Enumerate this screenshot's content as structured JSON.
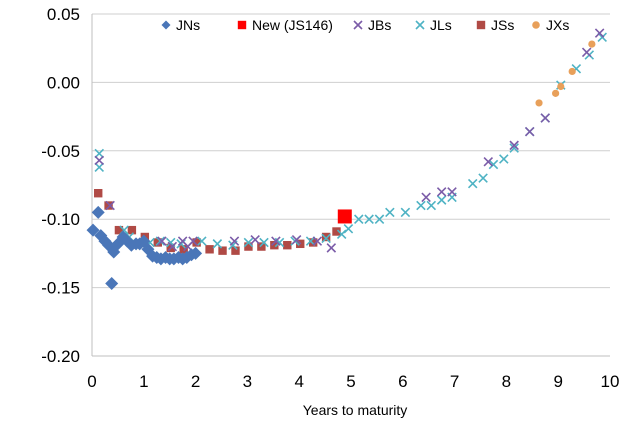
{
  "chart_data": {
    "type": "scatter",
    "title": "",
    "xlabel": "Years to maturity",
    "ylabel": "",
    "xlim": [
      0,
      10
    ],
    "ylim": [
      -0.2,
      0.05
    ],
    "x_ticks": [
      "0",
      "1",
      "2",
      "3",
      "4",
      "5",
      "6",
      "7",
      "8",
      "9",
      "10"
    ],
    "y_ticks": [
      "0.05",
      "0.00",
      "-0.05",
      "-0.10",
      "-0.15",
      "-0.20"
    ],
    "grid": "horizontal",
    "legend_position": "top",
    "series": [
      {
        "name": "JNs",
        "marker": "diamond",
        "color": "#4a76b8",
        "points": [
          [
            0.02,
            -0.108
          ],
          [
            0.12,
            -0.095
          ],
          [
            0.17,
            -0.112
          ],
          [
            0.25,
            -0.116
          ],
          [
            0.32,
            -0.119
          ],
          [
            0.38,
            -0.147
          ],
          [
            0.42,
            -0.124
          ],
          [
            0.5,
            -0.118
          ],
          [
            0.6,
            -0.113
          ],
          [
            0.68,
            -0.116
          ],
          [
            0.76,
            -0.119
          ],
          [
            0.85,
            -0.118
          ],
          [
            0.92,
            -0.118
          ],
          [
            1.0,
            -0.116
          ],
          [
            1.08,
            -0.122
          ],
          [
            1.17,
            -0.127
          ],
          [
            1.25,
            -0.128
          ],
          [
            1.33,
            -0.129
          ],
          [
            1.42,
            -0.128
          ],
          [
            1.5,
            -0.129
          ],
          [
            1.58,
            -0.129
          ],
          [
            1.67,
            -0.128
          ],
          [
            1.75,
            -0.129
          ],
          [
            1.83,
            -0.128
          ],
          [
            1.92,
            -0.126
          ],
          [
            2.0,
            -0.125
          ]
        ]
      },
      {
        "name": "New (JS146)",
        "marker": "square",
        "color": "#ff0000",
        "points": [
          [
            4.88,
            -0.098
          ]
        ]
      },
      {
        "name": "JBs",
        "marker": "x",
        "color": "#7b5ca8",
        "points": [
          [
            0.14,
            -0.057
          ],
          [
            0.35,
            -0.09
          ],
          [
            1.35,
            -0.116
          ],
          [
            1.55,
            -0.12
          ],
          [
            1.75,
            -0.116
          ],
          [
            1.85,
            -0.12
          ],
          [
            1.95,
            -0.116
          ],
          [
            2.75,
            -0.116
          ],
          [
            3.15,
            -0.115
          ],
          [
            3.55,
            -0.116
          ],
          [
            3.95,
            -0.115
          ],
          [
            4.35,
            -0.116
          ],
          [
            4.62,
            -0.121
          ],
          [
            6.45,
            -0.084
          ],
          [
            6.75,
            -0.08
          ],
          [
            6.95,
            -0.08
          ],
          [
            7.65,
            -0.058
          ],
          [
            8.15,
            -0.046
          ],
          [
            8.45,
            -0.036
          ],
          [
            8.75,
            -0.026
          ],
          [
            9.55,
            0.022
          ],
          [
            9.8,
            0.036
          ]
        ]
      },
      {
        "name": "JLs",
        "marker": "x",
        "color": "#4fb3c4",
        "points": [
          [
            0.14,
            -0.052
          ],
          [
            0.14,
            -0.062
          ],
          [
            0.62,
            -0.108
          ],
          [
            0.72,
            -0.113
          ],
          [
            0.92,
            -0.117
          ],
          [
            1.12,
            -0.117
          ],
          [
            1.32,
            -0.116
          ],
          [
            1.52,
            -0.117
          ],
          [
            1.72,
            -0.118
          ],
          [
            2.12,
            -0.116
          ],
          [
            2.42,
            -0.118
          ],
          [
            2.72,
            -0.119
          ],
          [
            3.02,
            -0.117
          ],
          [
            3.32,
            -0.117
          ],
          [
            3.62,
            -0.117
          ],
          [
            3.92,
            -0.116
          ],
          [
            4.22,
            -0.116
          ],
          [
            4.52,
            -0.114
          ],
          [
            4.82,
            -0.111
          ],
          [
            4.95,
            -0.107
          ],
          [
            5.15,
            -0.1
          ],
          [
            5.35,
            -0.1
          ],
          [
            5.55,
            -0.1
          ],
          [
            5.75,
            -0.095
          ],
          [
            6.05,
            -0.095
          ],
          [
            6.35,
            -0.09
          ],
          [
            6.55,
            -0.09
          ],
          [
            6.75,
            -0.086
          ],
          [
            6.95,
            -0.084
          ],
          [
            7.35,
            -0.074
          ],
          [
            7.55,
            -0.07
          ],
          [
            7.75,
            -0.06
          ],
          [
            7.95,
            -0.056
          ],
          [
            8.15,
            -0.048
          ],
          [
            8.45,
            -0.036
          ],
          [
            8.75,
            -0.026
          ],
          [
            9.05,
            -0.002
          ],
          [
            9.35,
            0.01
          ],
          [
            9.6,
            0.02
          ],
          [
            9.85,
            0.033
          ]
        ]
      },
      {
        "name": "JSs",
        "marker": "square",
        "color": "#b04a45",
        "points": [
          [
            0.12,
            -0.081
          ],
          [
            0.32,
            -0.09
          ],
          [
            0.52,
            -0.108
          ],
          [
            0.77,
            -0.108
          ],
          [
            1.02,
            -0.113
          ],
          [
            1.27,
            -0.117
          ],
          [
            1.52,
            -0.121
          ],
          [
            1.77,
            -0.122
          ],
          [
            2.02,
            -0.117
          ],
          [
            2.27,
            -0.122
          ],
          [
            2.52,
            -0.123
          ],
          [
            2.77,
            -0.123
          ],
          [
            3.02,
            -0.12
          ],
          [
            3.27,
            -0.12
          ],
          [
            3.52,
            -0.119
          ],
          [
            3.77,
            -0.119
          ],
          [
            4.02,
            -0.118
          ],
          [
            4.27,
            -0.117
          ],
          [
            4.52,
            -0.113
          ],
          [
            4.72,
            -0.109
          ]
        ]
      },
      {
        "name": "JXs",
        "marker": "circle",
        "color": "#e8a05a",
        "points": [
          [
            8.63,
            -0.015
          ],
          [
            8.95,
            -0.008
          ],
          [
            9.05,
            -0.003
          ],
          [
            9.27,
            0.008
          ],
          [
            9.65,
            0.028
          ]
        ]
      }
    ]
  }
}
